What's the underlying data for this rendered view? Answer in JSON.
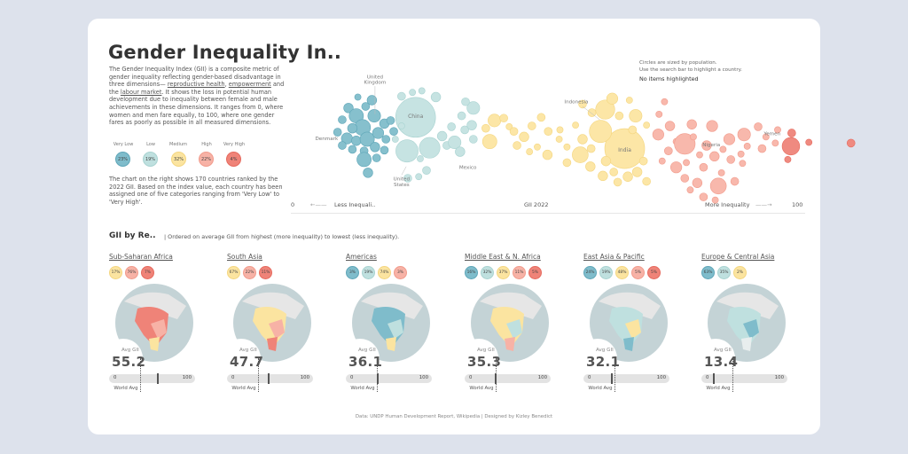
{
  "header": {
    "title": "Gender Inequality In..",
    "intro_parts": {
      "p1": "The Gender Inequality Index (GII) is a composite metric of gender inequality reflecting gender-based disadvantage in three dimensions— ",
      "link1": "reproductive health",
      "sep1": ", ",
      "link2": "empowerment",
      "sep2": " and the ",
      "link3": "labour market",
      "p2": ". It shows the loss in potential human development due to inequality between female and male achievements in these dimensions. It ranges from 0, where women and men fare equally, to 100, where one gender fares as poorly as possible in all measured dimensions."
    },
    "intro2": "The chart on the right shows 170 countries ranked by the 2022 GII. Based on the index value, each country has been assigned one of five categories ranging from 'Very Low' to 'Very High'."
  },
  "categories": [
    {
      "label": "Very Low",
      "share": "23%",
      "color": "#7fbccb"
    },
    {
      "label": "Low",
      "share": "19%",
      "color": "#bfe0df"
    },
    {
      "label": "Medium",
      "share": "32%",
      "color": "#fbe4a0"
    },
    {
      "label": "High",
      "share": "22%",
      "color": "#f7b2a6"
    },
    {
      "label": "Very High",
      "share": "4%",
      "color": "#ef8378"
    }
  ],
  "bubble_chart": {
    "note_line1": "Circles are sized by population.",
    "note_line2": "Use the search bar to highlight a country.",
    "highlight_status": "No items highlighted",
    "labels": {
      "united_kingdom": "United Kingdom",
      "denmark": "Denmark",
      "china": "China",
      "united_states": "United States",
      "mexico": "Mexico",
      "indonesia": "Indonesia",
      "india": "India",
      "nigeria": "Nigeria",
      "yemen": "Yemen"
    },
    "axis": {
      "min": "0",
      "max": "100",
      "left_label": "Less Inequali..",
      "center_label": "GII 2022",
      "right_label": "More Inequality"
    }
  },
  "regions_section": {
    "title": "GII by Re..",
    "subtitle": "| Ordered on average GII from highest (more inequality) to lowest (less inequality).",
    "avg_label": "Avg GII",
    "world_avg_label": "World Avg",
    "bar_min": "0",
    "bar_max": "100",
    "world_avg_value": 36.5,
    "regions": [
      {
        "name": "Sub-Saharan Africa",
        "avg": "55.2",
        "avg_num": 55.2,
        "shares": [
          {
            "cat": "med",
            "v": "17%"
          },
          {
            "cat": "high",
            "v": "76%"
          },
          {
            "cat": "vhigh",
            "v": "7%"
          }
        ]
      },
      {
        "name": "South Asia",
        "avg": "47.7",
        "avg_num": 47.7,
        "shares": [
          {
            "cat": "med",
            "v": "67%"
          },
          {
            "cat": "high",
            "v": "22%"
          },
          {
            "cat": "vhigh",
            "v": "11%"
          }
        ]
      },
      {
        "name": "Americas",
        "avg": "36.1",
        "avg_num": 36.1,
        "shares": [
          {
            "cat": "vlow",
            "v": "3%"
          },
          {
            "cat": "low",
            "v": "19%"
          },
          {
            "cat": "med",
            "v": "74%"
          },
          {
            "cat": "high",
            "v": "3%"
          }
        ]
      },
      {
        "name": "Middle East & N. Africa",
        "avg": "35.3",
        "avg_num": 35.3,
        "shares": [
          {
            "cat": "vlow",
            "v": "16%"
          },
          {
            "cat": "low",
            "v": "32%"
          },
          {
            "cat": "med",
            "v": "37%"
          },
          {
            "cat": "high",
            "v": "11%"
          },
          {
            "cat": "vhigh",
            "v": "5%"
          }
        ]
      },
      {
        "name": "East Asia & Pacific",
        "avg": "32.1",
        "avg_num": 32.1,
        "shares": [
          {
            "cat": "vlow",
            "v": "24%"
          },
          {
            "cat": "low",
            "v": "19%"
          },
          {
            "cat": "med",
            "v": "48%"
          },
          {
            "cat": "high",
            "v": "5%"
          },
          {
            "cat": "vhigh",
            "v": "5%"
          }
        ]
      },
      {
        "name": "Europe & Central Asia",
        "avg": "13.4",
        "avg_num": 13.4,
        "shares": [
          {
            "cat": "vlow",
            "v": "63%"
          },
          {
            "cat": "low",
            "v": "35%"
          },
          {
            "cat": "med",
            "v": "2%"
          }
        ]
      }
    ]
  },
  "footer": "Data: UNDP Human Development Report, Wikipedia  |  Designed by Kizley Benedict"
}
